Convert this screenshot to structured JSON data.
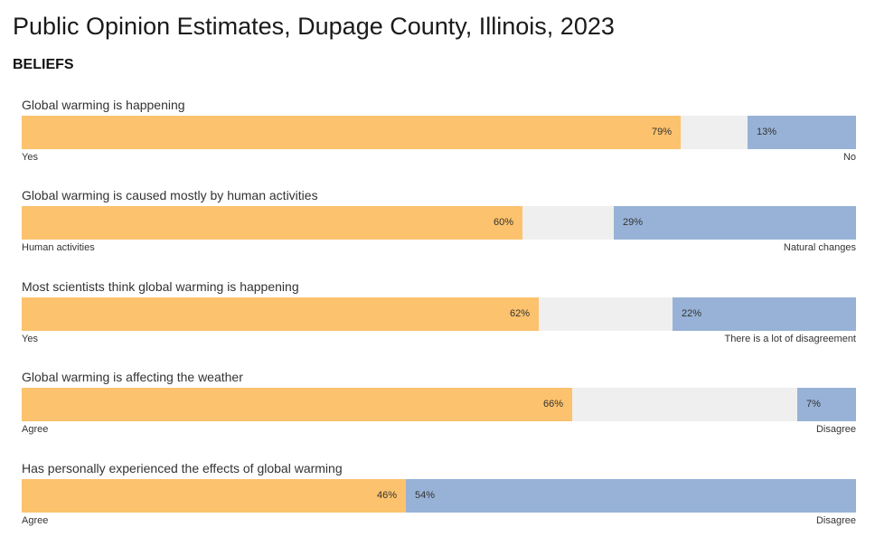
{
  "page": {
    "title": "Public Opinion Estimates, Dupage County, Illinois, 2023",
    "section": "BELIEFS"
  },
  "colors": {
    "left": "#fcc26d",
    "right": "#97b2d6",
    "middle": "#efefef"
  },
  "chart_data": {
    "type": "bar",
    "orientation": "horizontal-stacked",
    "scale": [
      0,
      100
    ],
    "unit": "%",
    "rows": [
      {
        "question": "Global warming is happening",
        "left_label": "Yes",
        "right_label": "No",
        "left_value": 79,
        "right_value": 13,
        "left_text": "79%",
        "right_text": "13%"
      },
      {
        "question": "Global warming is caused mostly by human activities",
        "left_label": "Human activities",
        "right_label": "Natural changes",
        "left_value": 60,
        "right_value": 29,
        "left_text": "60%",
        "right_text": "29%"
      },
      {
        "question": "Most scientists think global warming is happening",
        "left_label": "Yes",
        "right_label": "There is a lot of disagreement",
        "left_value": 62,
        "right_value": 22,
        "left_text": "62%",
        "right_text": "22%"
      },
      {
        "question": "Global warming is affecting the weather",
        "left_label": "Agree",
        "right_label": "Disagree",
        "left_value": 66,
        "right_value": 7,
        "left_text": "66%",
        "right_text": "7%"
      },
      {
        "question": "Has personally experienced the effects of global warming",
        "left_label": "Agree",
        "right_label": "Disagree",
        "left_value": 46,
        "right_value": 54,
        "left_text": "46%",
        "right_text": "54%"
      }
    ]
  }
}
